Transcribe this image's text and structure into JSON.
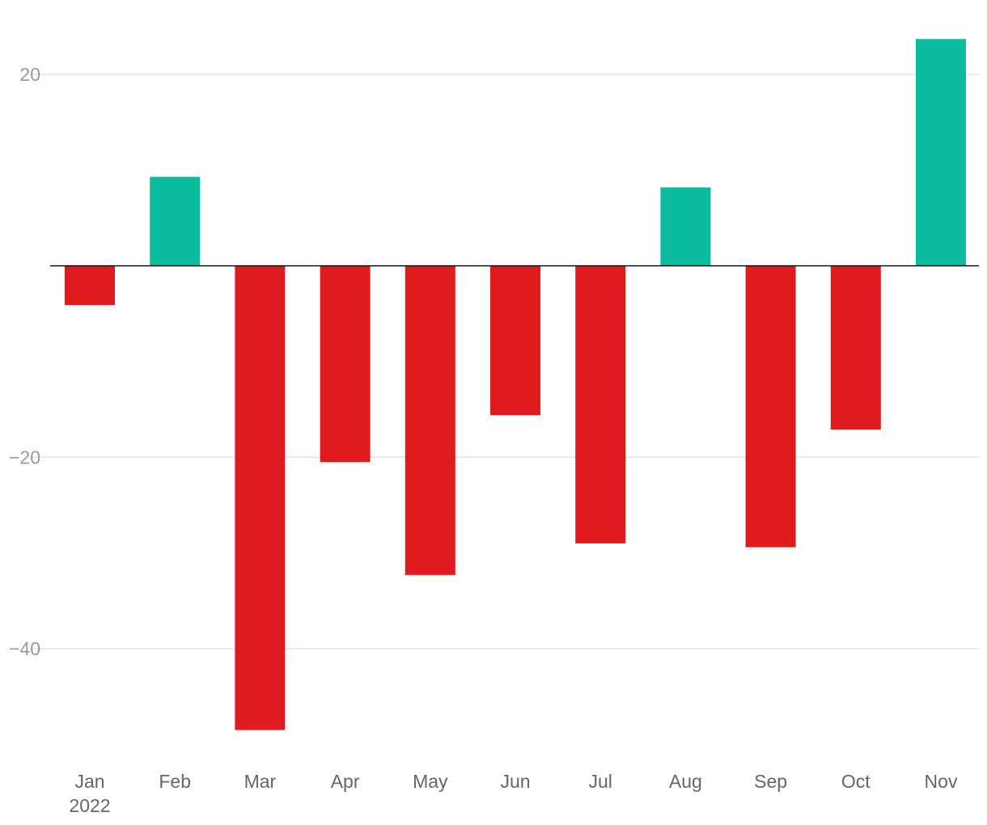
{
  "chart_data": {
    "type": "bar",
    "title": "",
    "xlabel": "",
    "ylabel": "",
    "categories": [
      "Jan",
      "Feb",
      "Mar",
      "Apr",
      "May",
      "Jun",
      "Jul",
      "Aug",
      "Sep",
      "Oct",
      "Nov"
    ],
    "year_label": "2022",
    "values": [
      -4.1,
      9.3,
      -48.5,
      -20.5,
      -32.3,
      -15.6,
      -29.0,
      8.2,
      -29.4,
      -17.1,
      23.7
    ],
    "ylim": [
      -51,
      26
    ],
    "yticks": [
      20,
      -20,
      -40
    ],
    "ytick_labels": [
      "20",
      "−20",
      "−40"
    ],
    "grid": true,
    "legend": "none",
    "colors": {
      "positive": "#0bbc9f",
      "negative": "#e01b1d",
      "zero_line": "#111111",
      "grid": "#e3e3e3"
    }
  }
}
